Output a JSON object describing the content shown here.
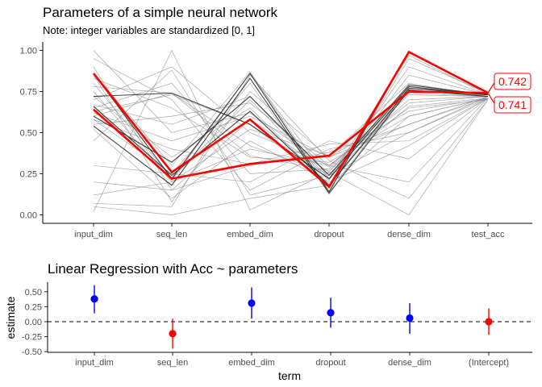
{
  "chart_data": [
    {
      "type": "line",
      "title": "Parameters of a simple neural network",
      "subtitle": "Note: integer variables are standardized [0, 1]",
      "xlabel": "",
      "ylabel": "",
      "categories": [
        "input_dim",
        "seq_len",
        "embed_dim",
        "dropout",
        "dense_dim",
        "test_acc"
      ],
      "ylim": [
        -0.05,
        1.05
      ],
      "yticks": [
        0.0,
        0.25,
        0.5,
        0.75,
        1.0
      ],
      "ytick_labels": [
        "0.00",
        "0.25",
        "0.50",
        "0.75",
        "1.00"
      ],
      "grid": false,
      "series_gray": [
        [
          0.02,
          1.0,
          0.03,
          0.26,
          0.0,
          0.7
        ],
        [
          0.05,
          0.0,
          0.1,
          0.18,
          0.6,
          0.71
        ],
        [
          0.07,
          0.05,
          0.85,
          0.33,
          0.1,
          0.7
        ],
        [
          0.12,
          0.2,
          0.4,
          0.3,
          0.65,
          0.7
        ],
        [
          0.2,
          0.15,
          0.3,
          0.38,
          0.55,
          0.71
        ],
        [
          0.3,
          0.25,
          0.2,
          0.45,
          0.34,
          0.71
        ],
        [
          0.45,
          0.88,
          0.12,
          0.24,
          0.5,
          0.72
        ],
        [
          0.52,
          0.1,
          0.45,
          0.2,
          0.42,
          0.71
        ],
        [
          0.55,
          0.6,
          0.68,
          0.3,
          0.2,
          0.71
        ],
        [
          0.58,
          0.25,
          0.8,
          0.14,
          0.77,
          0.73
        ],
        [
          0.6,
          0.74,
          0.36,
          0.27,
          0.7,
          0.72
        ],
        [
          0.62,
          0.45,
          0.6,
          0.35,
          0.63,
          0.71
        ],
        [
          0.65,
          0.8,
          0.25,
          0.28,
          0.73,
          0.72
        ],
        [
          0.67,
          0.55,
          0.72,
          0.22,
          0.85,
          0.73
        ],
        [
          0.7,
          0.9,
          0.5,
          0.3,
          0.68,
          0.72
        ],
        [
          0.72,
          0.35,
          0.65,
          0.18,
          0.75,
          0.73
        ],
        [
          0.75,
          0.2,
          0.52,
          0.36,
          0.8,
          0.72
        ],
        [
          0.78,
          0.74,
          0.42,
          0.25,
          0.66,
          0.71
        ],
        [
          0.8,
          0.22,
          0.7,
          0.21,
          0.9,
          0.73
        ],
        [
          0.83,
          0.65,
          0.35,
          0.32,
          0.6,
          0.71
        ],
        [
          0.86,
          0.3,
          0.87,
          0.16,
          0.95,
          0.74
        ],
        [
          0.9,
          0.15,
          0.58,
          0.26,
          0.78,
          0.72
        ],
        [
          0.95,
          0.7,
          0.15,
          0.4,
          0.5,
          0.71
        ],
        [
          1.0,
          0.5,
          0.62,
          0.29,
          0.74,
          0.72
        ],
        [
          0.66,
          0.21,
          0.86,
          0.22,
          0.97,
          0.73
        ],
        [
          0.63,
          0.73,
          0.55,
          0.19,
          0.76,
          0.72
        ],
        [
          0.58,
          0.4,
          0.31,
          0.43,
          0.45,
          0.71
        ],
        [
          0.85,
          0.08,
          0.75,
          0.35,
          0.55,
          0.72
        ]
      ],
      "series_dark": [
        [
          0.86,
          0.22,
          0.86,
          0.14,
          0.99,
          0.74
        ],
        [
          0.72,
          0.74,
          0.55,
          0.22,
          0.78,
          0.73
        ],
        [
          0.66,
          0.24,
          0.63,
          0.18,
          0.77,
          0.73
        ],
        [
          0.6,
          0.32,
          0.72,
          0.24,
          0.79,
          0.73
        ],
        [
          0.54,
          0.18,
          0.83,
          0.13,
          0.76,
          0.72
        ]
      ],
      "series_highlight": [
        [
          0.86,
          0.26,
          0.58,
          0.17,
          0.99,
          0.742
        ],
        [
          0.64,
          0.22,
          0.31,
          0.36,
          0.75,
          0.741
        ]
      ],
      "highlight_labels": [
        "0.742",
        "0.741"
      ],
      "colors": {
        "gray": "#8c8c8c",
        "dark": "#222222",
        "highlight": "#ff0000"
      }
    },
    {
      "type": "scatter",
      "title": "Linear Regression with Acc ~ parameters",
      "xlabel": "term",
      "ylabel": "estimate",
      "categories": [
        "input_dim",
        "seq_len",
        "embed_dim",
        "dropout",
        "dense_dim",
        "(Intercept)"
      ],
      "ylim": [
        -0.5,
        0.65
      ],
      "yticks": [
        -0.5,
        -0.25,
        0.0,
        0.25,
        0.5
      ],
      "ytick_labels": [
        "-0.50",
        "-0.25",
        "0.00",
        "0.25",
        "0.50"
      ],
      "reference_line": 0,
      "points": [
        {
          "term": "input_dim",
          "estimate": 0.38,
          "low": 0.14,
          "high": 0.61,
          "color": "#0000ff"
        },
        {
          "term": "seq_len",
          "estimate": -0.2,
          "low": -0.45,
          "high": 0.05,
          "color": "#ff0000"
        },
        {
          "term": "embed_dim",
          "estimate": 0.31,
          "low": 0.05,
          "high": 0.57,
          "color": "#0000ff"
        },
        {
          "term": "dropout",
          "estimate": 0.15,
          "low": -0.1,
          "high": 0.4,
          "color": "#0000ff"
        },
        {
          "term": "dense_dim",
          "estimate": 0.06,
          "low": -0.2,
          "high": 0.31,
          "color": "#0000ff"
        },
        {
          "term": "(Intercept)",
          "estimate": 0.0,
          "low": -0.22,
          "high": 0.22,
          "color": "#ff0000"
        }
      ]
    }
  ]
}
